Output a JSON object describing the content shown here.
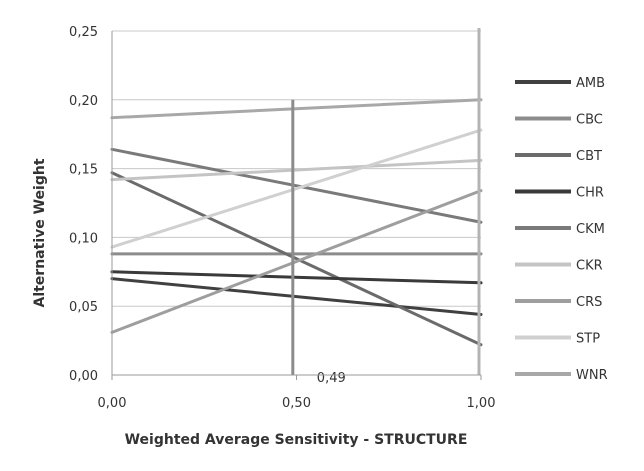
{
  "chart_data": {
    "type": "line",
    "xlabel": "Weighted Average Sensitivity - STRUCTURE",
    "ylabel": "Alternative Weight",
    "xlim": [
      0,
      1
    ],
    "ylim": [
      0,
      0.25
    ],
    "x_ticks": [
      "0,00",
      "0,50",
      "1,00"
    ],
    "y_ticks": [
      "0,00",
      "0,05",
      "0,10",
      "0,15",
      "0,20",
      "0,25"
    ],
    "grid": "horizontal",
    "legend_position": "right",
    "marker_line": {
      "x": 0.49,
      "label": "0,49",
      "color": "#8c8c8c"
    },
    "series": [
      {
        "name": "AMB",
        "color": "#404040",
        "x": [
          0,
          1
        ],
        "y": [
          0.07,
          0.044
        ]
      },
      {
        "name": "CBC",
        "color": "#8c8c8c",
        "x": [
          0,
          1
        ],
        "y": [
          0.088,
          0.088
        ]
      },
      {
        "name": "CBT",
        "color": "#6b6b6b",
        "x": [
          0,
          1
        ],
        "y": [
          0.147,
          0.022
        ]
      },
      {
        "name": "CHR",
        "color": "#3a3a3a",
        "x": [
          0,
          1
        ],
        "y": [
          0.075,
          0.067
        ]
      },
      {
        "name": "CKM",
        "color": "#7a7a7a",
        "x": [
          0,
          1
        ],
        "y": [
          0.164,
          0.111
        ]
      },
      {
        "name": "CKR",
        "color": "#c4c4c4",
        "x": [
          0,
          1
        ],
        "y": [
          0.142,
          0.156
        ]
      },
      {
        "name": "CRS",
        "color": "#9e9e9e",
        "x": [
          0,
          1
        ],
        "y": [
          0.031,
          0.134
        ]
      },
      {
        "name": "STP",
        "color": "#d0d0d0",
        "x": [
          0,
          1
        ],
        "y": [
          0.093,
          0.178
        ]
      },
      {
        "name": "WNR",
        "color": "#a8a8a8",
        "x": [
          0,
          1
        ],
        "y": [
          0.187,
          0.2
        ]
      }
    ]
  }
}
